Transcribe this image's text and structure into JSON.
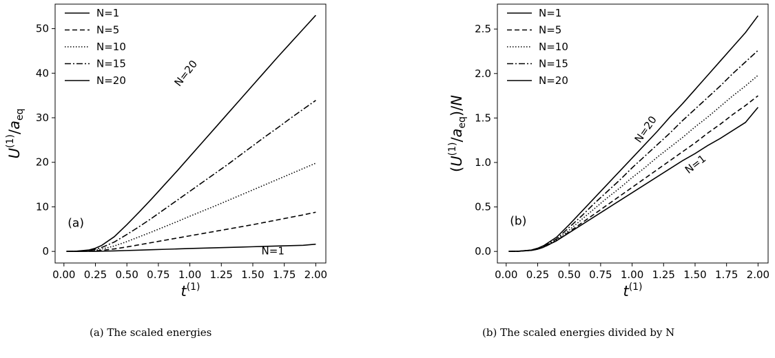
{
  "chart_data": [
    {
      "type": "line",
      "panel_label": "(a)",
      "caption": "(a) The scaled energies",
      "xlabel": "t^{(1)}",
      "ylabel": "U^{(1)}/a_eq",
      "xlim": [
        -0.07,
        2.08
      ],
      "ylim": [
        -2.6,
        55.5
      ],
      "xticks": [
        0.0,
        0.25,
        0.5,
        0.75,
        1.0,
        1.25,
        1.5,
        1.75,
        2.0
      ],
      "xtick_labels": [
        "0.00",
        "0.25",
        "0.50",
        "0.75",
        "1.00",
        "1.25",
        "1.50",
        "1.75",
        "2.00"
      ],
      "yticks": [
        0,
        10,
        20,
        30,
        40,
        50
      ],
      "ytick_labels": [
        "0",
        "10",
        "20",
        "30",
        "40",
        "50"
      ],
      "grid": false,
      "legend_position": "upper-left",
      "annotations": [
        {
          "text": "N=20",
          "x": 0.99,
          "y": 39.5,
          "rotation": -52
        },
        {
          "text": "N=1",
          "x": 1.66,
          "y": -0.7,
          "rotation": 0
        }
      ],
      "series": [
        {
          "name": "N=1",
          "dash": "solid",
          "x": [
            0.02,
            0.1,
            0.2,
            0.25,
            0.3,
            0.4,
            0.5,
            0.6,
            0.7,
            0.8,
            0.9,
            1.0,
            1.1,
            1.2,
            1.3,
            1.4,
            1.5,
            1.6,
            1.7,
            1.8,
            1.9,
            2.0
          ],
          "y": [
            0,
            0.002,
            0.01,
            0.022,
            0.045,
            0.11,
            0.2,
            0.29,
            0.38,
            0.47,
            0.56,
            0.65,
            0.73,
            0.81,
            0.89,
            0.97,
            1.05,
            1.13,
            1.21,
            1.29,
            1.37,
            1.62
          ]
        },
        {
          "name": "N=5",
          "dash": "dashed",
          "x": [
            0.02,
            0.1,
            0.2,
            0.25,
            0.3,
            0.4,
            0.5,
            0.6,
            0.7,
            0.8,
            0.9,
            1.0,
            1.1,
            1.2,
            1.3,
            1.4,
            1.5,
            1.6,
            1.7,
            1.8,
            1.9,
            2.0
          ],
          "y": [
            0,
            0.01,
            0.06,
            0.13,
            0.24,
            0.56,
            1.0,
            1.5,
            2.0,
            2.5,
            3.0,
            3.5,
            4.0,
            4.5,
            5.0,
            5.5,
            6.0,
            6.55,
            7.1,
            7.65,
            8.2,
            8.8
          ]
        },
        {
          "name": "N=10",
          "dash": "dotted",
          "x": [
            0.02,
            0.1,
            0.2,
            0.25,
            0.3,
            0.4,
            0.5,
            0.6,
            0.7,
            0.8,
            0.9,
            1.0,
            1.1,
            1.2,
            1.3,
            1.4,
            1.5,
            1.6,
            1.7,
            1.8,
            1.9,
            2.0
          ],
          "y": [
            0,
            0.02,
            0.13,
            0.28,
            0.52,
            1.22,
            2.2,
            3.3,
            4.4,
            5.55,
            6.7,
            7.9,
            9.05,
            10.2,
            11.4,
            12.6,
            13.8,
            15.0,
            16.2,
            17.4,
            18.6,
            19.8
          ]
        },
        {
          "name": "N=15",
          "dash": "dashdot",
          "x": [
            0.02,
            0.1,
            0.2,
            0.25,
            0.3,
            0.4,
            0.5,
            0.6,
            0.7,
            0.8,
            0.9,
            1.0,
            1.1,
            1.2,
            1.3,
            1.4,
            1.5,
            1.6,
            1.7,
            1.8,
            1.9,
            2.0
          ],
          "y": [
            0,
            0.03,
            0.22,
            0.47,
            0.88,
            2.1,
            3.8,
            5.6,
            7.5,
            9.5,
            11.5,
            13.5,
            15.5,
            17.5,
            19.5,
            21.6,
            23.7,
            25.8,
            27.8,
            29.9,
            31.9,
            33.9
          ]
        },
        {
          "name": "N=20",
          "dash": "solid",
          "x": [
            0.02,
            0.1,
            0.2,
            0.25,
            0.3,
            0.4,
            0.5,
            0.6,
            0.7,
            0.8,
            0.9,
            1.0,
            1.1,
            1.2,
            1.3,
            1.4,
            1.5,
            1.6,
            1.7,
            1.8,
            1.9,
            2.0
          ],
          "y": [
            0,
            0.05,
            0.33,
            0.72,
            1.35,
            3.3,
            6.0,
            8.9,
            11.9,
            15.0,
            18.1,
            21.3,
            24.5,
            27.7,
            30.9,
            34.1,
            37.3,
            40.5,
            43.7,
            46.8,
            49.9,
            53.0
          ]
        }
      ]
    },
    {
      "type": "line",
      "panel_label": "(b)",
      "caption": "(b) The scaled energies divided by N",
      "xlabel": "t^{(1)}",
      "ylabel": "(U^{(1)}/a_eq)/N",
      "xlim": [
        -0.07,
        2.08
      ],
      "ylim": [
        -0.13,
        2.78
      ],
      "xticks": [
        0.0,
        0.25,
        0.5,
        0.75,
        1.0,
        1.25,
        1.5,
        1.75,
        2.0
      ],
      "xtick_labels": [
        "0.00",
        "0.25",
        "0.50",
        "0.75",
        "1.00",
        "1.25",
        "1.50",
        "1.75",
        "2.00"
      ],
      "yticks": [
        0.0,
        0.5,
        1.0,
        1.5,
        2.0,
        2.5
      ],
      "ytick_labels": [
        "0.0",
        "0.5",
        "1.0",
        "1.5",
        "2.0",
        "2.5"
      ],
      "grid": false,
      "legend_position": "upper-left",
      "annotations": [
        {
          "text": "N=20",
          "x": 1.13,
          "y": 1.35,
          "rotation": -55
        },
        {
          "text": "N=1",
          "x": 1.52,
          "y": 0.95,
          "rotation": -38
        }
      ],
      "series": [
        {
          "name": "N=1",
          "dash": "solid",
          "x": [
            0.02,
            0.1,
            0.2,
            0.25,
            0.3,
            0.4,
            0.5,
            0.6,
            0.7,
            0.8,
            0.9,
            1.0,
            1.1,
            1.2,
            1.3,
            1.4,
            1.5,
            1.6,
            1.7,
            1.8,
            1.9,
            2.0
          ],
          "y": [
            0,
            0.002,
            0.012,
            0.025,
            0.05,
            0.12,
            0.21,
            0.3,
            0.39,
            0.48,
            0.57,
            0.66,
            0.75,
            0.84,
            0.93,
            1.02,
            1.1,
            1.19,
            1.27,
            1.36,
            1.45,
            1.62
          ]
        },
        {
          "name": "N=5",
          "dash": "dashed",
          "x": [
            0.02,
            0.1,
            0.2,
            0.25,
            0.3,
            0.4,
            0.5,
            0.6,
            0.7,
            0.8,
            0.9,
            1.0,
            1.1,
            1.2,
            1.3,
            1.4,
            1.5,
            1.6,
            1.7,
            1.8,
            1.9,
            2.0
          ],
          "y": [
            0,
            0.002,
            0.012,
            0.026,
            0.048,
            0.12,
            0.22,
            0.32,
            0.42,
            0.52,
            0.62,
            0.72,
            0.82,
            0.92,
            1.02,
            1.12,
            1.22,
            1.33,
            1.43,
            1.54,
            1.64,
            1.75
          ]
        },
        {
          "name": "N=10",
          "dash": "dotted",
          "x": [
            0.02,
            0.1,
            0.2,
            0.25,
            0.3,
            0.4,
            0.5,
            0.6,
            0.7,
            0.8,
            0.9,
            1.0,
            1.1,
            1.2,
            1.3,
            1.4,
            1.5,
            1.6,
            1.7,
            1.8,
            1.9,
            2.0
          ],
          "y": [
            0,
            0.002,
            0.013,
            0.028,
            0.052,
            0.13,
            0.24,
            0.36,
            0.48,
            0.6,
            0.71,
            0.83,
            0.94,
            1.06,
            1.17,
            1.28,
            1.4,
            1.51,
            1.63,
            1.75,
            1.86,
            1.98
          ]
        },
        {
          "name": "N=15",
          "dash": "dashdot",
          "x": [
            0.02,
            0.1,
            0.2,
            0.25,
            0.3,
            0.4,
            0.5,
            0.6,
            0.7,
            0.8,
            0.9,
            1.0,
            1.1,
            1.2,
            1.3,
            1.4,
            1.5,
            1.6,
            1.7,
            1.8,
            1.9,
            2.0
          ],
          "y": [
            0,
            0.002,
            0.014,
            0.031,
            0.058,
            0.14,
            0.27,
            0.4,
            0.54,
            0.67,
            0.8,
            0.94,
            1.07,
            1.2,
            1.33,
            1.47,
            1.6,
            1.73,
            1.86,
            2.0,
            2.13,
            2.26
          ]
        },
        {
          "name": "N=20",
          "dash": "solid",
          "x": [
            0.02,
            0.1,
            0.2,
            0.25,
            0.3,
            0.4,
            0.5,
            0.6,
            0.7,
            0.8,
            0.9,
            1.0,
            1.1,
            1.2,
            1.3,
            1.4,
            1.5,
            1.6,
            1.7,
            1.8,
            1.9,
            2.0
          ],
          "y": [
            0,
            0.003,
            0.016,
            0.036,
            0.067,
            0.16,
            0.3,
            0.45,
            0.6,
            0.75,
            0.9,
            1.05,
            1.2,
            1.35,
            1.51,
            1.66,
            1.82,
            1.98,
            2.14,
            2.3,
            2.46,
            2.65
          ]
        }
      ]
    }
  ]
}
